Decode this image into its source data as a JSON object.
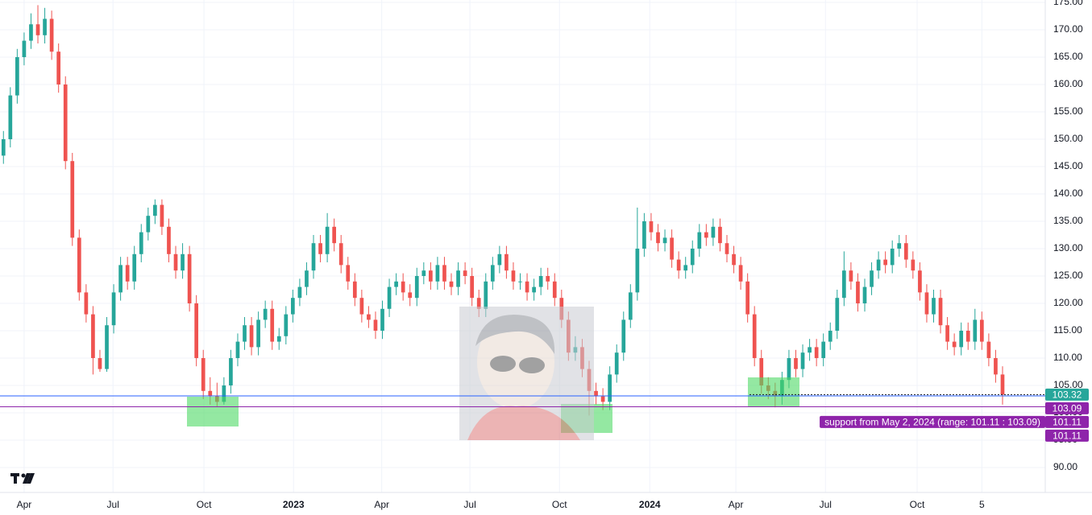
{
  "chart_data": {
    "type": "candlestick",
    "up_color": "#26a69a",
    "down_color": "#ef5350",
    "grid": true,
    "xlim": [
      0,
      151.7
    ],
    "xticks": [
      {
        "value": 3.5,
        "label": "Apr"
      },
      {
        "value": 16.4,
        "label": "Jul"
      },
      {
        "value": 29.6,
        "label": "Oct"
      },
      {
        "value": 42.6,
        "label": "2023"
      },
      {
        "value": 55.4,
        "label": "Apr"
      },
      {
        "value": 68.2,
        "label": "Jul"
      },
      {
        "value": 81.2,
        "label": "Oct"
      },
      {
        "value": 94.3,
        "label": "2024"
      },
      {
        "value": 106.8,
        "label": "Apr"
      },
      {
        "value": 119.8,
        "label": "Jul"
      },
      {
        "value": 133.1,
        "label": "Oct"
      },
      {
        "value": 142.5,
        "label": "5"
      }
    ],
    "ylim": [
      85.44,
      175.44
    ],
    "yticks": [
      {
        "value": 90,
        "label": "90.00"
      },
      {
        "value": 95,
        "label": "95.00"
      },
      {
        "value": 100,
        "label": "100.00"
      },
      {
        "value": 105,
        "label": "105.00"
      },
      {
        "value": 110,
        "label": "110.00"
      },
      {
        "value": 115,
        "label": "115.00"
      },
      {
        "value": 120,
        "label": "120.00"
      },
      {
        "value": 125,
        "label": "125.00"
      },
      {
        "value": 130,
        "label": "130.00"
      },
      {
        "value": 135,
        "label": "135.00"
      },
      {
        "value": 140,
        "label": "140.00"
      },
      {
        "value": 145,
        "label": "145.00"
      },
      {
        "value": 150,
        "label": "150.00"
      },
      {
        "value": 155,
        "label": "155.00"
      },
      {
        "value": 160,
        "label": "160.00"
      },
      {
        "value": 165,
        "label": "165.00"
      },
      {
        "value": 170,
        "label": "170.00"
      },
      {
        "value": 175,
        "label": "175.00"
      }
    ],
    "open": [
      147,
      150,
      158,
      165,
      168,
      171,
      169,
      172,
      166,
      160,
      146,
      132,
      122,
      118,
      110,
      108,
      116,
      122,
      127,
      124,
      129,
      133,
      136,
      138,
      134,
      129,
      126,
      129,
      120,
      110,
      104,
      103,
      102,
      105,
      110,
      113,
      116,
      112,
      117,
      119,
      113,
      114,
      118,
      121,
      123,
      126,
      131,
      129,
      134,
      131,
      127,
      124,
      121,
      118,
      117,
      115,
      119,
      123,
      124,
      122,
      121,
      125,
      126,
      124,
      127,
      124,
      123,
      126,
      125,
      121,
      119,
      124,
      127,
      129,
      126,
      124,
      124,
      122,
      123,
      125,
      124,
      121,
      117,
      111,
      112,
      108,
      104,
      103,
      102,
      107,
      111,
      117,
      122,
      130,
      135,
      133,
      131,
      132,
      128,
      126,
      127,
      130,
      133,
      132,
      134,
      131,
      129,
      127,
      124,
      118,
      110,
      105,
      104,
      103,
      106,
      110,
      108,
      111,
      112,
      110,
      113,
      115,
      121,
      126,
      124,
      120,
      123,
      126,
      128,
      127,
      130,
      131,
      128,
      126,
      122,
      118,
      121,
      116,
      113,
      112,
      115,
      113,
      117,
      113,
      110,
      107
    ],
    "high": [
      151.5,
      159.5,
      166.5,
      169.5,
      173,
      174.5,
      174,
      173.5,
      167.5,
      161.5,
      147.5,
      133.5,
      123.5,
      119.5,
      111.5,
      117.5,
      123.5,
      128.5,
      128.5,
      130.5,
      134.5,
      137.5,
      139,
      139,
      135.5,
      130.5,
      131,
      130.5,
      121.5,
      111.5,
      106.5,
      105.5,
      106.5,
      111.5,
      114.5,
      117.5,
      117.5,
      118.5,
      120.5,
      120.5,
      115.5,
      119.5,
      122.5,
      124.5,
      127.5,
      132.5,
      132.5,
      136.5,
      135.5,
      132.5,
      128.5,
      125.5,
      122.5,
      119.5,
      118.5,
      120.5,
      124.5,
      125.5,
      125.5,
      123.5,
      126.5,
      127.5,
      127.5,
      128.5,
      128.5,
      125.5,
      127.5,
      127.5,
      126.5,
      122.5,
      125.5,
      128.5,
      130.5,
      130.5,
      127.5,
      125.5,
      125.5,
      124.5,
      126.5,
      126.5,
      125.5,
      122.5,
      118.5,
      114,
      113.5,
      109.5,
      105.5,
      104.5,
      108.5,
      112.5,
      118.5,
      123.5,
      137.5,
      136.5,
      136.5,
      134.5,
      133.5,
      133.5,
      129.5,
      128.5,
      131.5,
      134.5,
      134.5,
      135.5,
      135.5,
      132.5,
      130.5,
      128.5,
      125.5,
      119.5,
      111.5,
      106.5,
      105.5,
      107.5,
      111.5,
      111.5,
      112.5,
      113.5,
      113.5,
      114.5,
      116.5,
      122.5,
      129.5,
      127.5,
      125.5,
      124.5,
      127.5,
      129.5,
      129.5,
      131.5,
      132.5,
      132.5,
      129.5,
      127.5,
      123.5,
      122.5,
      122.5,
      117.5,
      114.5,
      116.5,
      116.5,
      119,
      118.5,
      114.5,
      111.5,
      108.5
    ],
    "low": [
      145.5,
      148.5,
      156.5,
      163.5,
      166.5,
      167.5,
      167.5,
      164.5,
      158.5,
      144.5,
      130.5,
      120.5,
      116.5,
      107,
      107.5,
      107.5,
      114.5,
      120.5,
      122.5,
      122.5,
      127.5,
      131.5,
      134.5,
      132.5,
      127.5,
      124.5,
      124.5,
      118.5,
      108.5,
      102.5,
      101.5,
      101.2,
      101.5,
      103.5,
      108.5,
      111.5,
      110.5,
      110.5,
      115.5,
      111.5,
      111.5,
      112.5,
      116.5,
      119.5,
      121.5,
      124.5,
      127.5,
      127.5,
      129.5,
      125.5,
      122.5,
      119.5,
      116.5,
      115.5,
      113.5,
      113.5,
      117.5,
      121.5,
      120.5,
      119.5,
      119.5,
      123.5,
      122.5,
      122.5,
      122.5,
      121.5,
      121.5,
      123.5,
      119.5,
      117.5,
      117.5,
      122.5,
      125.5,
      124.5,
      122.5,
      122.5,
      120.5,
      120.5,
      121.5,
      122.5,
      119.5,
      115.5,
      109.5,
      109.5,
      106.5,
      99.5,
      101.5,
      100.5,
      100.5,
      105.5,
      109.5,
      115.5,
      120.5,
      128.5,
      131.5,
      129.5,
      129.5,
      126.5,
      124.5,
      124.5,
      125.5,
      128.5,
      130.5,
      130.5,
      129.5,
      127.5,
      125.5,
      122.5,
      116.5,
      108.5,
      103.5,
      102.5,
      101,
      101.5,
      104.5,
      106.5,
      106.5,
      109.5,
      108.5,
      108.5,
      111.5,
      113.5,
      119.5,
      122.5,
      118.5,
      118.5,
      121.5,
      124.5,
      125.5,
      125.5,
      128.5,
      126.5,
      124.5,
      120.5,
      116.5,
      116.5,
      114.5,
      111.5,
      110.5,
      110.5,
      111.5,
      111.5,
      111.5,
      108.5,
      105.5,
      101.5
    ],
    "close": [
      150,
      158,
      165,
      168,
      171,
      169,
      172,
      166,
      160,
      146,
      132,
      122,
      118,
      110,
      108,
      116,
      122,
      127,
      124,
      129,
      133,
      136,
      138,
      134,
      129,
      126,
      129,
      120,
      110,
      104,
      103,
      102,
      105,
      110,
      113,
      116,
      112,
      117,
      119,
      113,
      114,
      118,
      121,
      123,
      126,
      131,
      129,
      134,
      131,
      127,
      124,
      121,
      118,
      117,
      115,
      119,
      123,
      124,
      122,
      121,
      125,
      126,
      124,
      127,
      124,
      123,
      126,
      125,
      121,
      119,
      124,
      127,
      129,
      126,
      124,
      124,
      122,
      123,
      125,
      124,
      121,
      117,
      111,
      112,
      108,
      104,
      103,
      102,
      107,
      111,
      117,
      122,
      130,
      135,
      133,
      131,
      132,
      128,
      126,
      127,
      130,
      133,
      132,
      134,
      131,
      129,
      127,
      124,
      118,
      110,
      105,
      104,
      103,
      106,
      110,
      108,
      111,
      112,
      110,
      113,
      115,
      121,
      126,
      124,
      120,
      123,
      126,
      128,
      127,
      130,
      131,
      128,
      126,
      122,
      118,
      121,
      116,
      113,
      112,
      115,
      113,
      117,
      113,
      110,
      107,
      103.32
    ],
    "price_tags": [
      {
        "value": 103.32,
        "color": "#26a69a"
      },
      {
        "value": 103.09,
        "color": "#8e24aa"
      },
      {
        "value": 101.11,
        "color": "#8e24aa"
      },
      {
        "value": 101.11,
        "color": "#8e24aa"
      }
    ],
    "annotation": {
      "text": "support from May 2, 2024 (range: 101.11 : 103.09)",
      "color": "#8e24aa"
    }
  }
}
